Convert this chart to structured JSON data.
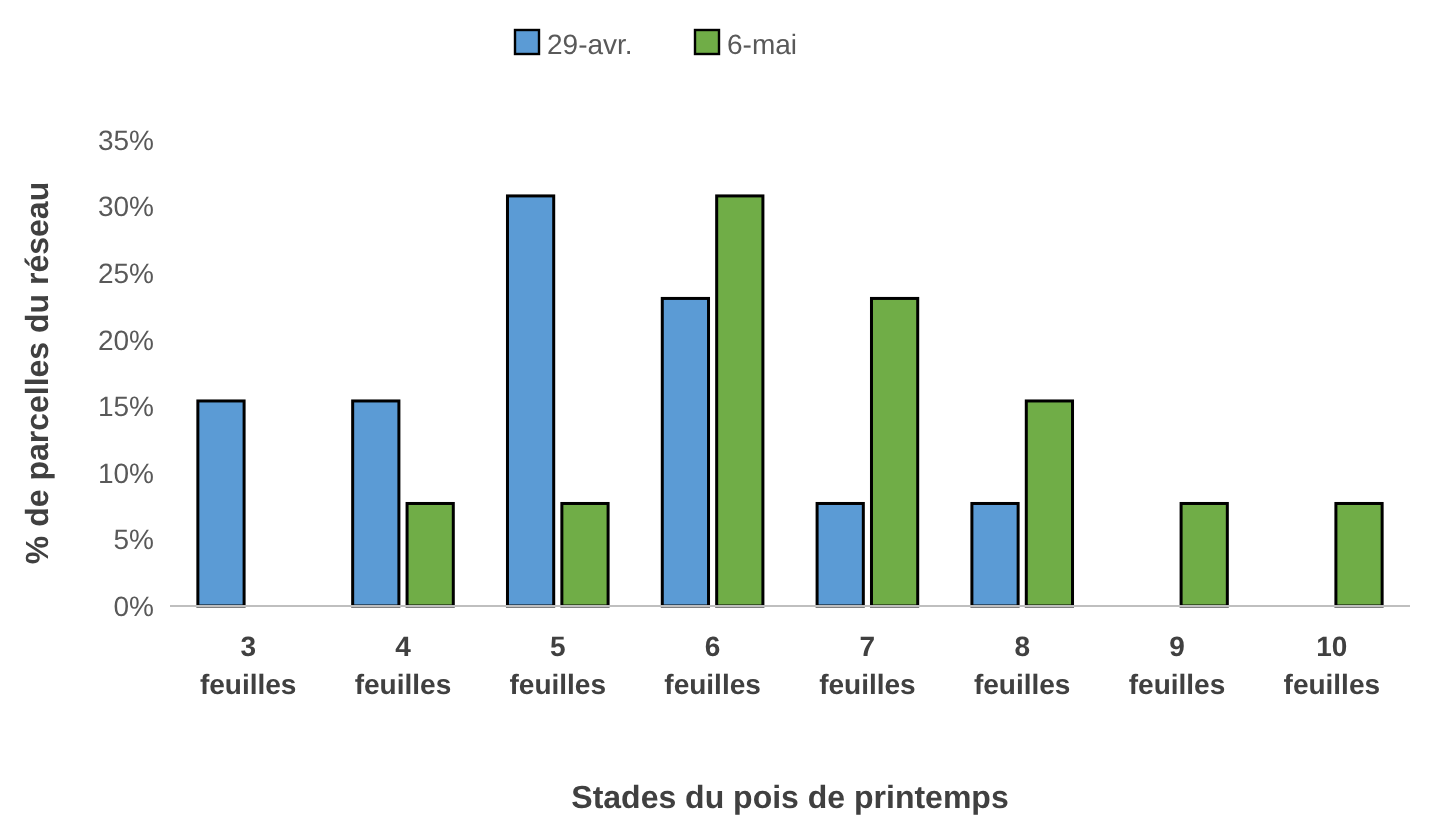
{
  "chart_data": {
    "type": "bar",
    "xlabel": "Stades du pois de printemps",
    "ylabel": "% de parcelles du réseau",
    "categories": [
      "3 feuilles",
      "4 feuilles",
      "5 feuilles",
      "6 feuilles",
      "7 feuilles",
      "8 feuilles",
      "9 feuilles",
      "10 feuilles"
    ],
    "series": [
      {
        "name": "29-avr.",
        "color": "#5b9bd5",
        "values": [
          15.4,
          15.4,
          30.8,
          23.1,
          7.7,
          7.7,
          0,
          0
        ]
      },
      {
        "name": "6-mai",
        "color": "#70ad47",
        "values": [
          0,
          7.7,
          7.7,
          30.8,
          23.1,
          15.4,
          7.7,
          7.7
        ]
      }
    ],
    "ylim": [
      0,
      35
    ],
    "yticks": [
      {
        "value": 0,
        "label": "0%"
      },
      {
        "value": 5,
        "label": "5%"
      },
      {
        "value": 10,
        "label": "10%"
      },
      {
        "value": 15,
        "label": "15%"
      },
      {
        "value": 20,
        "label": "20%"
      },
      {
        "value": 25,
        "label": "25%"
      },
      {
        "value": 30,
        "label": "30%"
      },
      {
        "value": 35,
        "label": "35%"
      }
    ],
    "grid": false,
    "legend": "top"
  }
}
